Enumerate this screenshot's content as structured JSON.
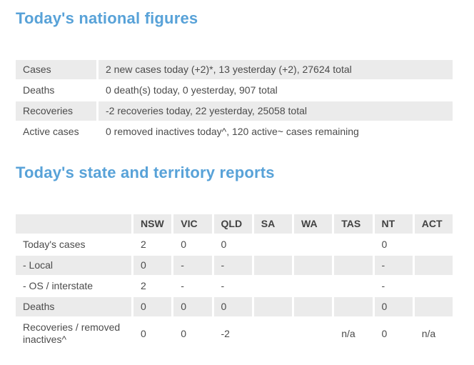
{
  "colors": {
    "accent_blue": "#58a2d8",
    "row_stripe_gray": "#ebebeb",
    "body_text": "#4b4b4b"
  },
  "national": {
    "heading": "Today's national figures",
    "rows": [
      {
        "label": "Cases",
        "value": "2 new cases today (+2)*, 13 yesterday (+2), 27624 total"
      },
      {
        "label": "Deaths",
        "value": "0 death(s) today, 0 yesterday, 907 total"
      },
      {
        "label": "Recoveries",
        "value": "-2 recoveries today, 22 yesterday, 25058 total"
      },
      {
        "label": "Active cases",
        "value": "0 removed inactives today^, 120 active~ cases remaining"
      }
    ]
  },
  "state_reports": {
    "heading": "Today's state and territory reports",
    "columns": [
      "",
      "NSW",
      "VIC",
      "QLD",
      "SA",
      "WA",
      "TAS",
      "NT",
      "ACT"
    ],
    "rows": [
      {
        "label": "Today's cases",
        "values": [
          "2",
          "0",
          "0",
          "",
          "",
          "",
          "0",
          ""
        ]
      },
      {
        "label": "- Local",
        "values": [
          "0",
          "-",
          "-",
          "",
          "",
          "",
          "-",
          ""
        ]
      },
      {
        "label": "- OS / interstate",
        "values": [
          "2",
          "-",
          "-",
          "",
          "",
          "",
          "-",
          ""
        ]
      },
      {
        "label": "Deaths",
        "values": [
          "0",
          "0",
          "0",
          "",
          "",
          "",
          "0",
          ""
        ]
      },
      {
        "label": "Recoveries / removed inactives^",
        "values": [
          "0",
          "0",
          "-2",
          "",
          "",
          "n/a",
          "0",
          "n/a"
        ]
      }
    ]
  }
}
